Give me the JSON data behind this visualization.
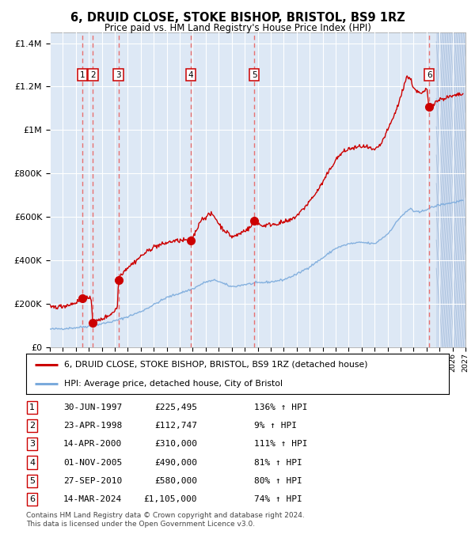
{
  "title": "6, DRUID CLOSE, STOKE BISHOP, BRISTOL, BS9 1RZ",
  "subtitle": "Price paid vs. HM Land Registry's House Price Index (HPI)",
  "legend_line1": "6, DRUID CLOSE, STOKE BISHOP, BRISTOL, BS9 1RZ (detached house)",
  "legend_line2": "HPI: Average price, detached house, City of Bristol",
  "footer1": "Contains HM Land Registry data © Crown copyright and database right 2024.",
  "footer2": "This data is licensed under the Open Government Licence v3.0.",
  "hpi_color": "#7aaadc",
  "price_color": "#cc0000",
  "sale_marker_color": "#cc0000",
  "bg_color": "#dde8f5",
  "grid_color": "#ffffff",
  "dashed_line_color": "#e87070",
  "sale_dates_num": [
    1997.497,
    1998.308,
    2000.286,
    2005.836,
    2010.737,
    2024.202
  ],
  "sale_prices": [
    225495,
    112747,
    310000,
    490000,
    580000,
    1105000
  ],
  "sale_labels": [
    "1",
    "2",
    "3",
    "4",
    "5",
    "6"
  ],
  "table_rows": [
    [
      "1",
      "30-JUN-1997",
      "£225,495",
      "136% ↑ HPI"
    ],
    [
      "2",
      "23-APR-1998",
      "£112,747",
      "9% ↑ HPI"
    ],
    [
      "3",
      "14-APR-2000",
      "£310,000",
      "111% ↑ HPI"
    ],
    [
      "4",
      "01-NOV-2005",
      "£490,000",
      "81% ↑ HPI"
    ],
    [
      "5",
      "27-SEP-2010",
      "£580,000",
      "80% ↑ HPI"
    ],
    [
      "6",
      "14-MAR-2024",
      "£1,105,000",
      "74% ↑ HPI"
    ]
  ],
  "ylim": [
    0,
    1450000
  ],
  "xlim_start": 1995.0,
  "xlim_end": 2027.0,
  "future_start": 2024.75,
  "yticks": [
    0,
    200000,
    400000,
    600000,
    800000,
    1000000,
    1200000,
    1400000
  ],
  "ytick_labels": [
    "£0",
    "£200K",
    "£400K",
    "£600K",
    "£800K",
    "£1M",
    "£1.2M",
    "£1.4M"
  ]
}
